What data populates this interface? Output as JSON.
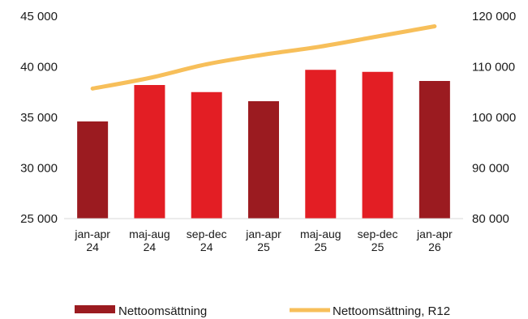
{
  "chart_data": {
    "type": "bar",
    "categories": [
      [
        "jan-apr",
        "24"
      ],
      [
        "maj-aug",
        "24"
      ],
      [
        "sep-dec",
        "24"
      ],
      [
        "jan-apr",
        "25"
      ],
      [
        "maj-aug",
        "25"
      ],
      [
        "sep-dec",
        "25"
      ],
      [
        "jan-apr",
        "26"
      ]
    ],
    "series": [
      {
        "name": "Nettoomsättning",
        "type": "bar",
        "axis": "left",
        "values": [
          34600,
          38200,
          37500,
          36600,
          39700,
          39500,
          38600
        ],
        "colors": [
          "#9b1b20",
          "#e31e24",
          "#e31e24",
          "#9b1b20",
          "#e31e24",
          "#e31e24",
          "#9b1b20"
        ]
      },
      {
        "name": "Nettoomsättning, R12",
        "type": "line",
        "axis": "right",
        "values": [
          105700,
          107800,
          110500,
          112400,
          114000,
          116000,
          118000
        ],
        "color": "#f7bf5a"
      }
    ],
    "y_left": {
      "min": 25000,
      "max": 45000,
      "ticks": [
        "25 000",
        "30 000",
        "35 000",
        "40 000",
        "45 000"
      ]
    },
    "y_right": {
      "min": 80000,
      "max": 120000,
      "ticks": [
        "80 000",
        "90 000",
        "100 000",
        "110 000",
        "120 000"
      ]
    },
    "grid": false,
    "legend_position": "bottom",
    "legend_swatch_color": "#9b1b20"
  }
}
